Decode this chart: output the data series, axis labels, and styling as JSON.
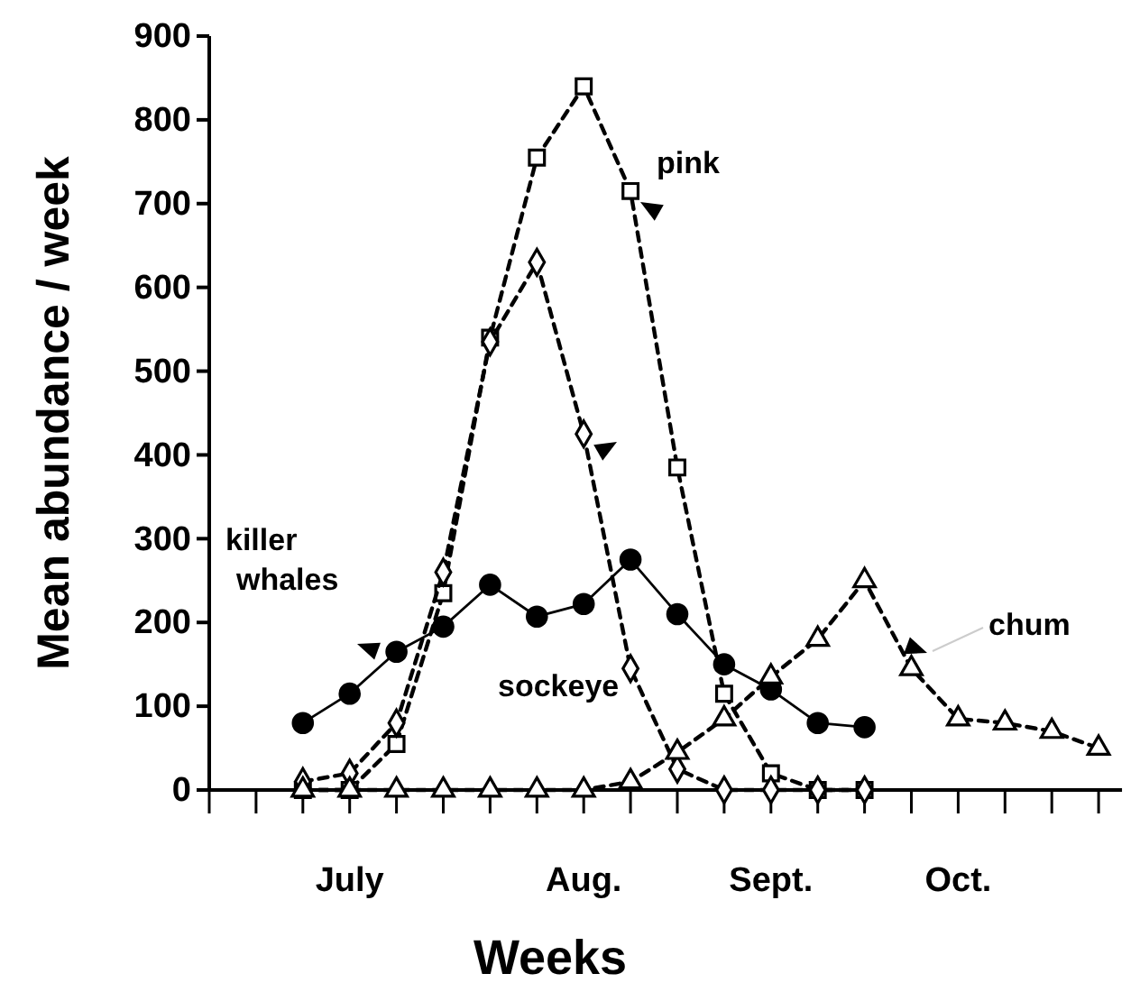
{
  "chart_data": {
    "type": "line",
    "xlabel": "Weeks",
    "ylabel": "Mean abundance / week",
    "ylim": [
      0,
      900
    ],
    "yticks": [
      0,
      100,
      200,
      300,
      400,
      500,
      600,
      700,
      800,
      900
    ],
    "categories": [
      null,
      null,
      null,
      "July",
      null,
      null,
      null,
      null,
      "Aug.",
      null,
      null,
      null,
      "Sept.",
      null,
      null,
      null,
      "Oct.",
      null,
      null,
      null
    ],
    "legend": false,
    "grid": false,
    "series": [
      {
        "name": "killer whales",
        "color": "#000000",
        "marker": "circle",
        "line_style": "solid",
        "values": [
          null,
          null,
          80,
          115,
          165,
          195,
          245,
          207,
          222,
          275,
          210,
          150,
          120,
          80,
          75,
          null,
          null,
          null,
          null,
          null
        ]
      },
      {
        "name": "pink",
        "color": "#000000",
        "marker": "square",
        "line_style": "dashed",
        "values": [
          null,
          null,
          0,
          0,
          55,
          235,
          540,
          755,
          840,
          715,
          385,
          115,
          20,
          0,
          0,
          null,
          null,
          null,
          null,
          null
        ]
      },
      {
        "name": "sockeye",
        "color": "#000000",
        "marker": "diamond",
        "line_style": "dashed",
        "values": [
          null,
          null,
          10,
          20,
          80,
          260,
          535,
          630,
          425,
          145,
          25,
          0,
          0,
          0,
          0,
          null,
          null,
          null,
          null,
          null
        ]
      },
      {
        "name": "chum",
        "color": "#000000",
        "marker": "triangle",
        "line_style": "dashed",
        "values": [
          null,
          null,
          0,
          0,
          0,
          0,
          0,
          0,
          0,
          10,
          45,
          85,
          135,
          180,
          250,
          145,
          85,
          80,
          70,
          50
        ]
      }
    ]
  }
}
